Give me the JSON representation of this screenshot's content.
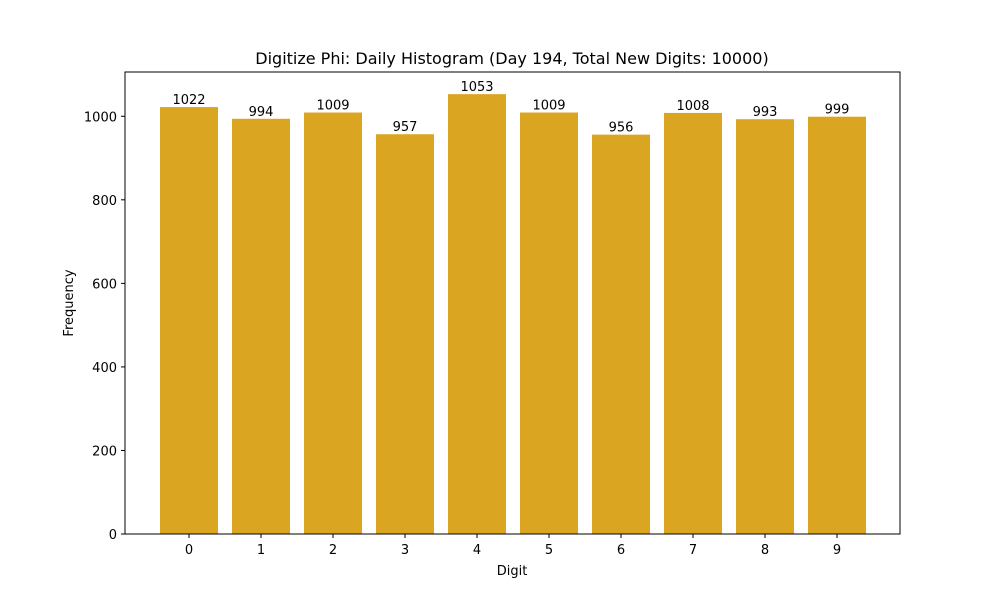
{
  "chart_data": {
    "type": "bar",
    "title": "Digitize Phi: Daily Histogram (Day 194, Total New Digits: 10000)",
    "xlabel": "Digit",
    "ylabel": "Frequency",
    "categories": [
      "0",
      "1",
      "2",
      "3",
      "4",
      "5",
      "6",
      "7",
      "8",
      "9"
    ],
    "values": [
      1022,
      994,
      1009,
      957,
      1053,
      1009,
      956,
      1008,
      993,
      999
    ],
    "bar_labels": [
      "1022",
      "994",
      "1009",
      "957",
      "1053",
      "1009",
      "956",
      "1008",
      "993",
      "999"
    ],
    "yticks": [
      0,
      200,
      400,
      600,
      800,
      1000
    ],
    "ytick_labels": [
      "0",
      "200",
      "400",
      "600",
      "800",
      "1000"
    ],
    "ylim": [
      0,
      1106
    ],
    "grid": false,
    "legend": null,
    "bar_color": "#DAA520"
  }
}
